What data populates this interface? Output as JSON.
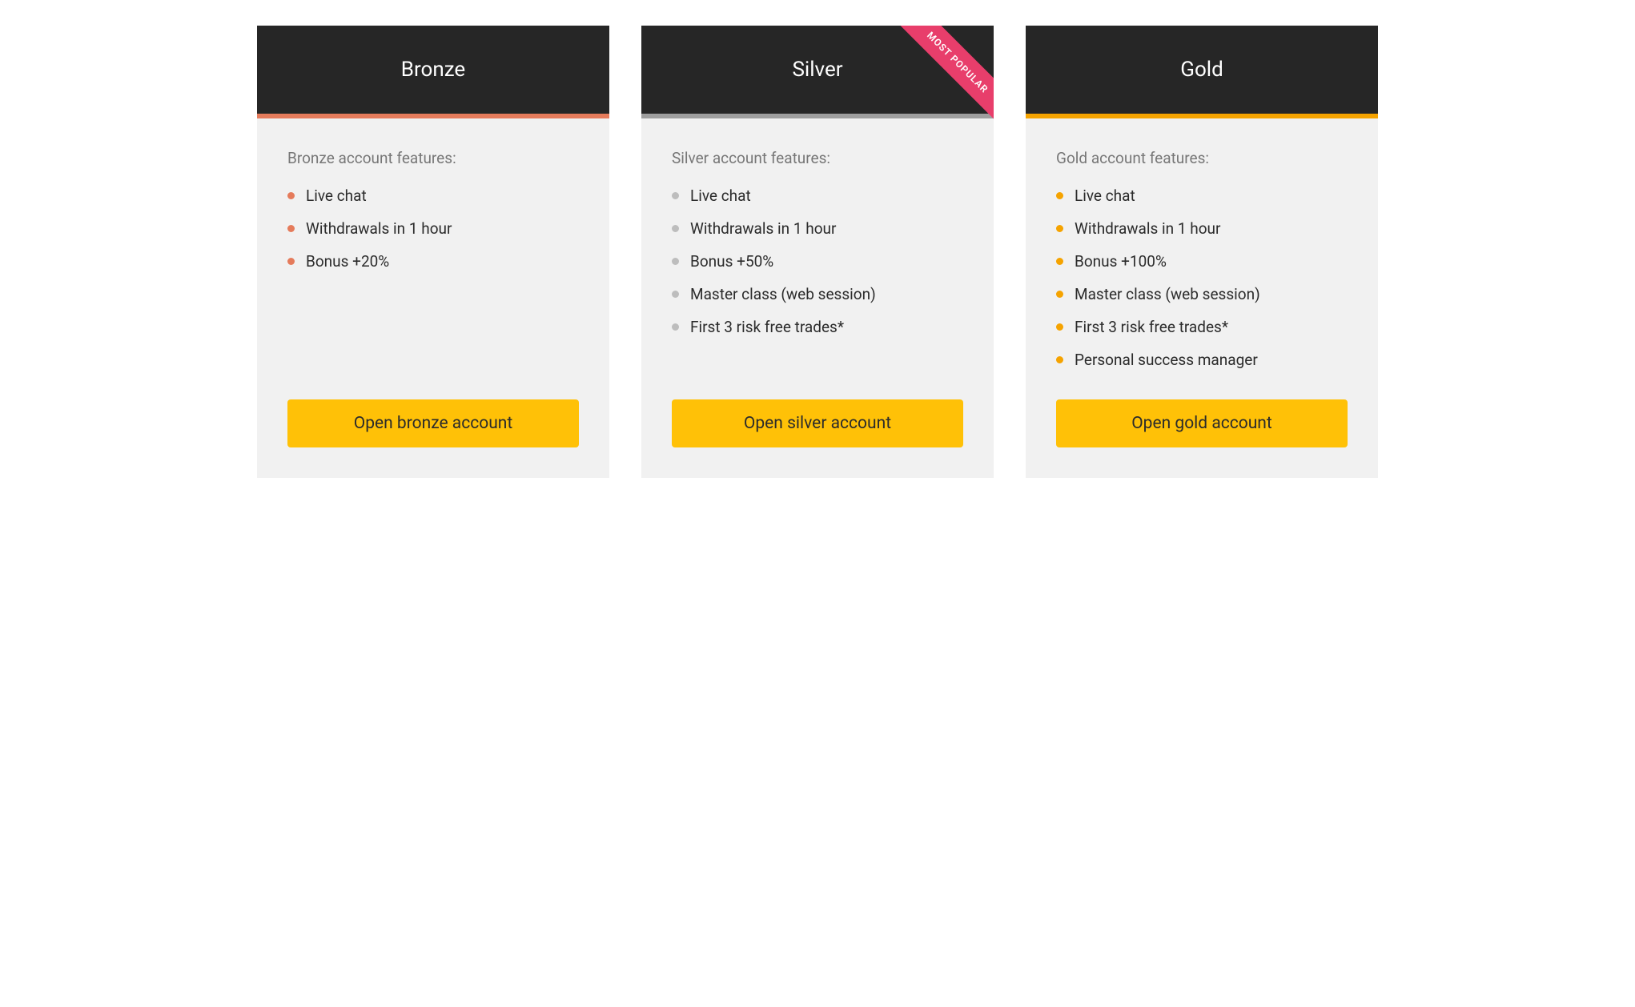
{
  "layout": {
    "card_background": "#f1f1f1",
    "header_background": "#262626",
    "header_text_color": "#ffffff",
    "body_text_color": "#2b2b2b",
    "subtitle_text_color": "#777777",
    "button_background": "#ffc107",
    "button_text_color": "#2b2b2b",
    "ribbon_background": "#e83e6b",
    "ribbon_text_color": "#ffffff"
  },
  "plans": [
    {
      "id": "bronze",
      "title": "Bronze",
      "accent_color": "#e57b5b",
      "bullet_color": "#e57b5b",
      "features_heading": "Bronze account features:",
      "features": [
        "Live chat",
        "Withdrawals in 1 hour",
        "Bonus +20%"
      ],
      "button_label": "Open bronze account",
      "ribbon_label": null
    },
    {
      "id": "silver",
      "title": "Silver",
      "accent_color": "#9e9e9e",
      "bullet_color": "#bdbdbd",
      "features_heading": "Silver account features:",
      "features": [
        "Live chat",
        "Withdrawals in 1 hour",
        "Bonus +50%",
        "Master class (web session)",
        "First 3 risk free trades*"
      ],
      "button_label": "Open silver account",
      "ribbon_label": "MOST POPULAR"
    },
    {
      "id": "gold",
      "title": "Gold",
      "accent_color": "#f5a300",
      "bullet_color": "#f5a300",
      "features_heading": "Gold account features:",
      "features": [
        "Live chat",
        "Withdrawals in 1 hour",
        "Bonus +100%",
        "Master class (web session)",
        "First 3 risk free trades*",
        "Personal success manager"
      ],
      "button_label": "Open gold account",
      "ribbon_label": null
    }
  ]
}
